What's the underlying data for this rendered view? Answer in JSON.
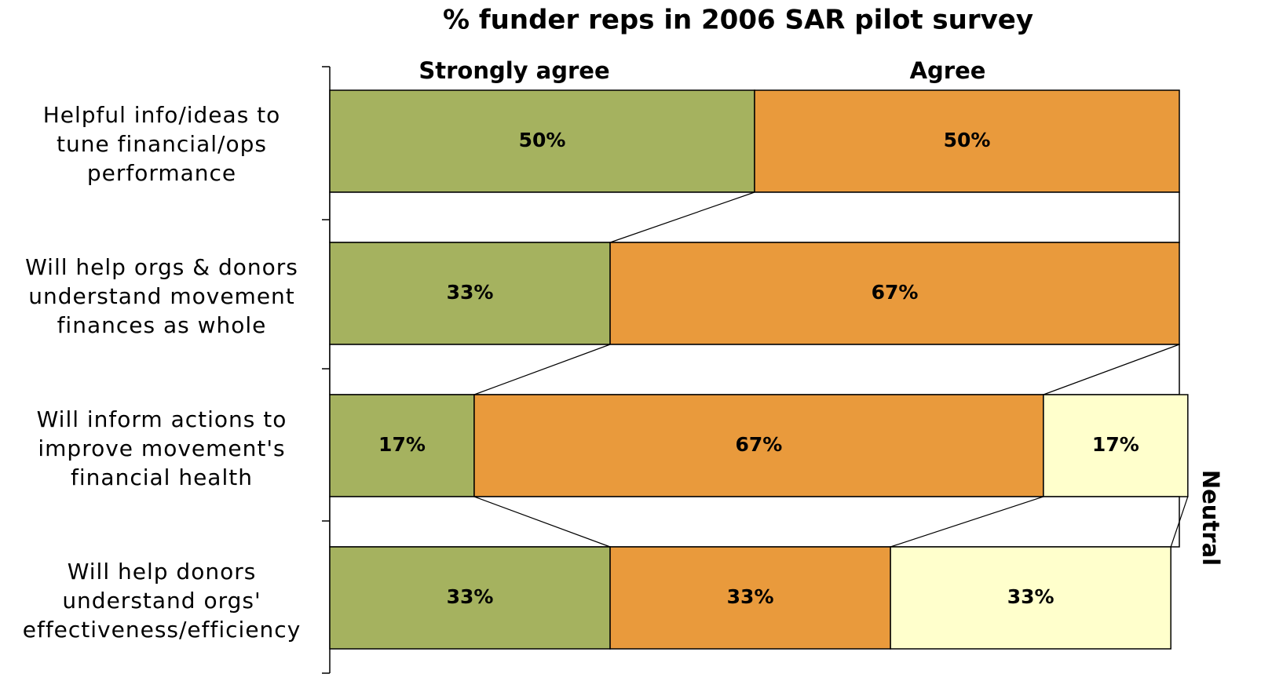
{
  "chart_data": {
    "type": "stacked-barh",
    "title": "% funder reps in 2006 SAR pilot survey",
    "categories": [
      [
        "Helpful info/ideas to",
        "tune financial/ops",
        "performance"
      ],
      [
        "Will help orgs & donors",
        "understand movement",
        "finances as whole"
      ],
      [
        "Will inform actions to",
        "improve movement's",
        "financial health"
      ],
      [
        "Will help donors",
        "understand orgs'",
        "effectiveness/efficiency"
      ]
    ],
    "series": [
      {
        "name": "Strongly agree",
        "color": "#a5b25f",
        "values": [
          50,
          33,
          17,
          33
        ],
        "value_labels": [
          "50%",
          "33%",
          "17%",
          "33%"
        ]
      },
      {
        "name": "Agree",
        "color": "#e99a3c",
        "values": [
          50,
          67,
          67,
          33
        ],
        "value_labels": [
          "50%",
          "67%",
          "67%",
          "33%"
        ]
      },
      {
        "name": "Neutral",
        "color": "#ffffcc",
        "values": [
          null,
          null,
          17,
          33
        ],
        "value_labels": [
          null,
          null,
          "17%",
          "33%"
        ]
      }
    ],
    "xlim": [
      0,
      100
    ]
  }
}
